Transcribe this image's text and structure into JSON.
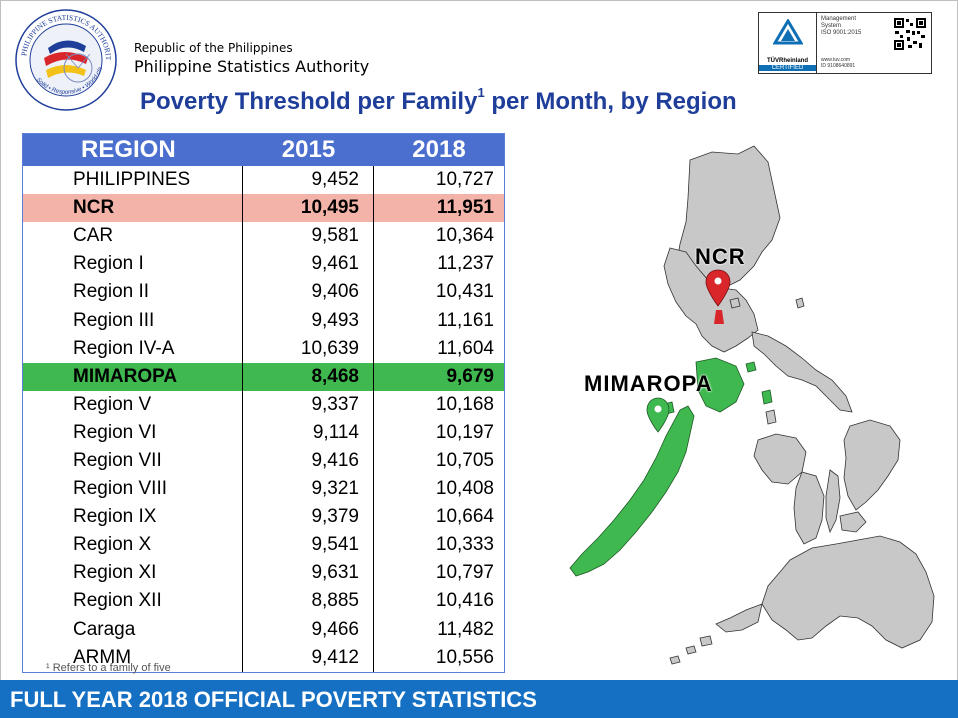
{
  "header": {
    "country": "Republic of the Philippines",
    "agency": "Philippine Statistics Authority",
    "logo_text": "PHILIPPINE STATISTICS AUTHORITY",
    "logo_motto": "Solid • Responsive • World-class"
  },
  "certification": {
    "brand": "TÜVRheinland",
    "badge": "CERTIFIED",
    "lines": [
      "Management",
      "System",
      "ISO 9001:2015"
    ],
    "web": "www.tuv.com",
    "id": "ID 9108640891"
  },
  "title": {
    "text_before": "Poverty Threshold per Family",
    "superscript": "1",
    "text_after": " per Month, by Region"
  },
  "table": {
    "headers": [
      "REGION",
      "2015",
      "2018"
    ],
    "rows": [
      {
        "region": "PHILIPPINES",
        "y2015": "9,452",
        "y2018": "10,727"
      },
      {
        "region": "NCR",
        "y2015": "10,495",
        "y2018": "11,951"
      },
      {
        "region": "CAR",
        "y2015": "9,581",
        "y2018": "10,364"
      },
      {
        "region": "Region I",
        "y2015": "9,461",
        "y2018": "11,237"
      },
      {
        "region": "Region II",
        "y2015": "9,406",
        "y2018": "10,431"
      },
      {
        "region": "Region III",
        "y2015": "9,493",
        "y2018": "11,161"
      },
      {
        "region": "Region IV-A",
        "y2015": "10,639",
        "y2018": "11,604"
      },
      {
        "region": "MIMAROPA",
        "y2015": "8,468",
        "y2018": "9,679"
      },
      {
        "region": "Region V",
        "y2015": "9,337",
        "y2018": "10,168"
      },
      {
        "region": "Region VI",
        "y2015": "9,114",
        "y2018": "10,197"
      },
      {
        "region": "Region VII",
        "y2015": "9,416",
        "y2018": "10,705"
      },
      {
        "region": "Region VIII",
        "y2015": "9,321",
        "y2018": "10,408"
      },
      {
        "region": "Region IX",
        "y2015": "9,379",
        "y2018": "10,664"
      },
      {
        "region": "Region X",
        "y2015": "9,541",
        "y2018": "10,333"
      },
      {
        "region": "Region XI",
        "y2015": "9,631",
        "y2018": "10,797"
      },
      {
        "region": "Region XII",
        "y2015": "8,885",
        "y2018": "10,416"
      },
      {
        "region": "Caraga",
        "y2015": "9,466",
        "y2018": "11,482"
      },
      {
        "region": "ARMM",
        "y2015": "9,412",
        "y2018": "10,556"
      }
    ]
  },
  "footnote": "¹ Refers to a family of five",
  "map": {
    "ncr_label": "NCR",
    "mimaropa_label": "MIMAROPA",
    "ncr_pin_color": "#d9262a",
    "mimaropa_pin_color": "#3fb94f",
    "land_color": "#c8c8c8",
    "highlight_color": "#3fb94f"
  },
  "footer": {
    "text": "FULL YEAR 2018 OFFICIAL POVERTY STATISTICS"
  },
  "colors": {
    "title": "#1f3e9a",
    "table_header": "#4b6fcf",
    "ncr_row": "#f4b3a8",
    "mimaropa_row": "#3fb94f",
    "footer_bar": "#1570c4"
  }
}
